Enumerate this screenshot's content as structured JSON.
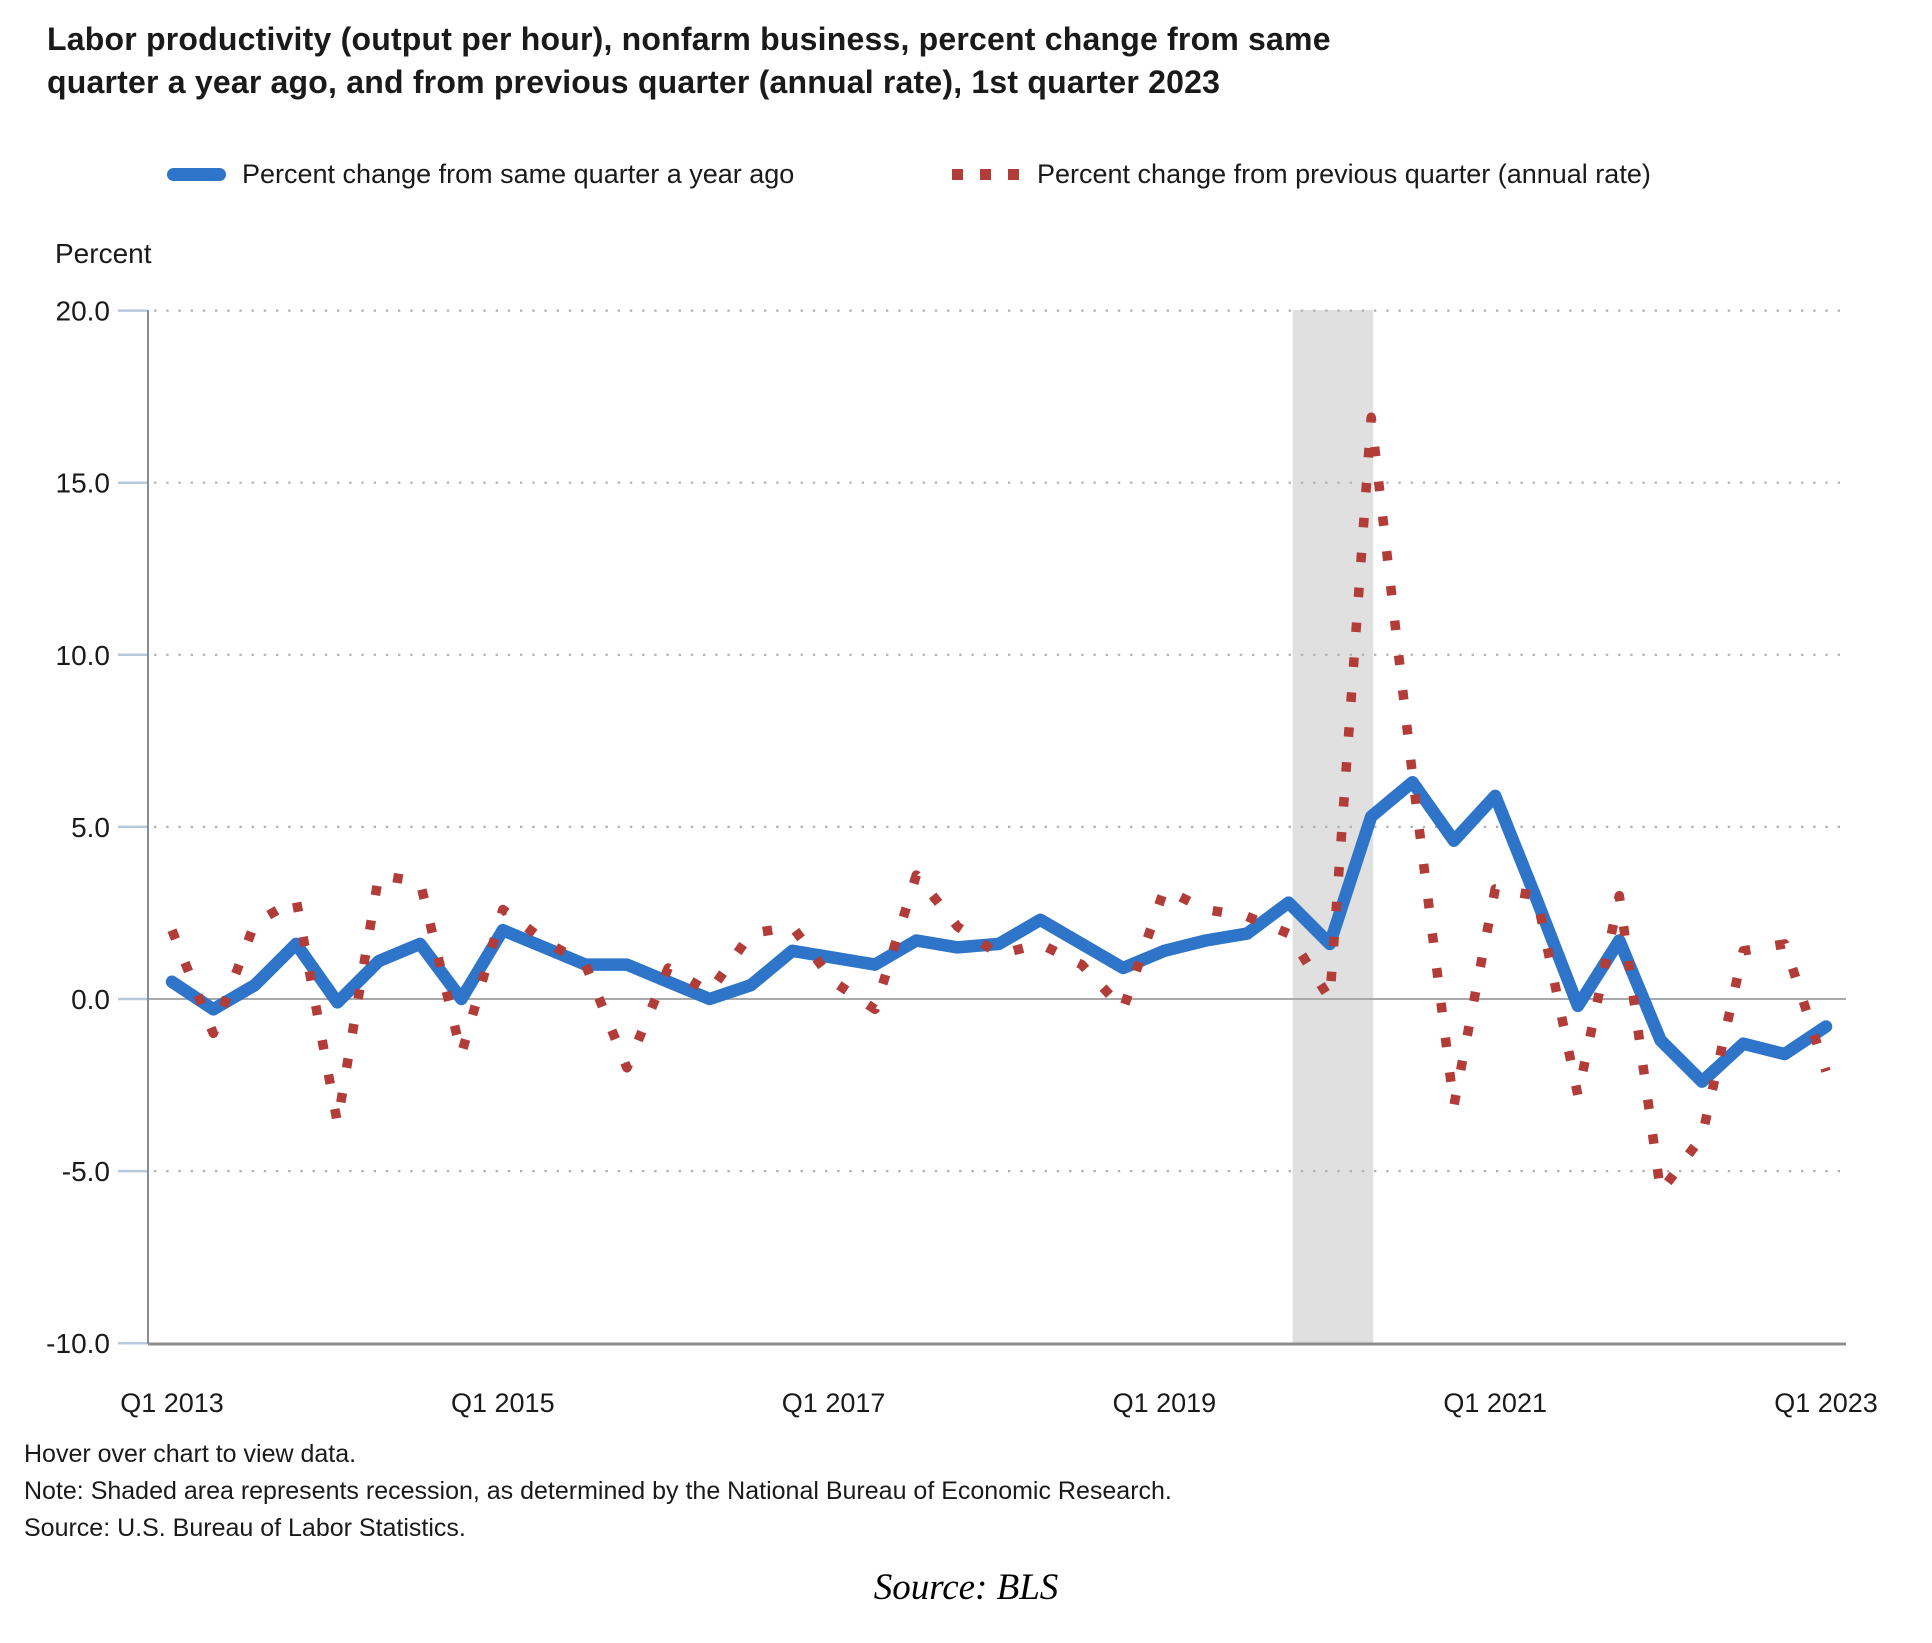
{
  "title": {
    "line1": "Labor productivity (output per hour), nonfarm business, percent change from same",
    "line2": "quarter a year ago, and from previous quarter (annual rate), 1st quarter 2023"
  },
  "legend": [
    {
      "label": "Percent change from same quarter a year ago",
      "color": "#2e74c9",
      "style": "solid-line"
    },
    {
      "label": "Percent change from previous quarter (annual rate)",
      "color": "#b13c38",
      "style": "dotted-line"
    }
  ],
  "y_axis": {
    "label": "Percent",
    "ticks": [
      {
        "value": 20,
        "label": "20.0"
      },
      {
        "value": 15,
        "label": "15.0"
      },
      {
        "value": 10,
        "label": "10.0"
      },
      {
        "value": 5,
        "label": "5.0"
      },
      {
        "value": 0,
        "label": "0.0"
      },
      {
        "value": -5,
        "label": "-5.0"
      },
      {
        "value": -10,
        "label": "-10.0"
      }
    ]
  },
  "x_axis": {
    "ticks": [
      {
        "index": 0,
        "label": "Q1 2013"
      },
      {
        "index": 8,
        "label": "Q1 2015"
      },
      {
        "index": 16,
        "label": "Q1 2017"
      },
      {
        "index": 24,
        "label": "Q1 2019"
      },
      {
        "index": 32,
        "label": "Q1 2021"
      },
      {
        "index": 40,
        "label": "Q1 2023"
      }
    ]
  },
  "chart_data": {
    "type": "line",
    "title": "Labor productivity (output per hour), nonfarm business, percent change from same quarter a year ago, and from previous quarter (annual rate), 1st quarter 2023",
    "ylabel": "Percent",
    "ylim": [
      -10,
      20
    ],
    "grid": "dotted-horizontal",
    "legend_position": "top",
    "x": [
      "Q1 2013",
      "Q2 2013",
      "Q3 2013",
      "Q4 2013",
      "Q1 2014",
      "Q2 2014",
      "Q3 2014",
      "Q4 2014",
      "Q1 2015",
      "Q2 2015",
      "Q3 2015",
      "Q4 2015",
      "Q1 2016",
      "Q2 2016",
      "Q3 2016",
      "Q4 2016",
      "Q1 2017",
      "Q2 2017",
      "Q3 2017",
      "Q4 2017",
      "Q1 2018",
      "Q2 2018",
      "Q3 2018",
      "Q4 2018",
      "Q1 2019",
      "Q2 2019",
      "Q3 2019",
      "Q4 2019",
      "Q1 2020",
      "Q2 2020",
      "Q3 2020",
      "Q4 2020",
      "Q1 2021",
      "Q2 2021",
      "Q3 2021",
      "Q4 2021",
      "Q1 2022",
      "Q2 2022",
      "Q3 2022",
      "Q4 2022",
      "Q1 2023"
    ],
    "series": [
      {
        "name": "Percent change from same quarter a year ago",
        "style": "solid",
        "color": "#2e74c9",
        "values": [
          0.5,
          -0.3,
          0.4,
          1.6,
          -0.1,
          1.1,
          1.6,
          0.0,
          2.0,
          1.5,
          1.0,
          1.0,
          0.5,
          0.0,
          0.4,
          1.4,
          1.2,
          1.0,
          1.7,
          1.5,
          1.6,
          2.3,
          1.6,
          0.9,
          1.4,
          1.7,
          1.9,
          2.8,
          1.6,
          5.3,
          6.3,
          4.6,
          5.9,
          2.9,
          -0.2,
          1.7,
          -1.2,
          -2.4,
          -1.3,
          -1.6,
          -0.8
        ]
      },
      {
        "name": "Percent change from previous quarter (annual rate)",
        "style": "dotted",
        "color": "#b13c38",
        "values": [
          2.0,
          -1.0,
          2.2,
          2.9,
          -3.6,
          3.6,
          3.4,
          -1.6,
          2.6,
          1.7,
          1.0,
          -2.0,
          0.9,
          0.2,
          1.9,
          2.1,
          0.5,
          -0.3,
          3.6,
          2.1,
          1.3,
          1.6,
          1.0,
          -0.3,
          3.2,
          2.6,
          2.4,
          1.9,
          0.0,
          16.9,
          6.5,
          -3.1,
          3.2,
          3.0,
          -2.8,
          3.0,
          -5.6,
          -4.0,
          1.4,
          1.6,
          -2.1
        ]
      }
    ],
    "recession_band": {
      "from_quarter": "Q4 2019",
      "to_quarter": "Q2 2020",
      "from_index": 27.1,
      "to_index": 29.05,
      "color": "#e0e0e0"
    }
  },
  "footnotes": [
    "Hover over chart to view data.",
    "Note: Shaded area represents recession, as determined by the National Bureau of Economic Research.",
    "Source: U.S. Bureau of Labor Statistics."
  ],
  "source_caption": "Source: BLS"
}
